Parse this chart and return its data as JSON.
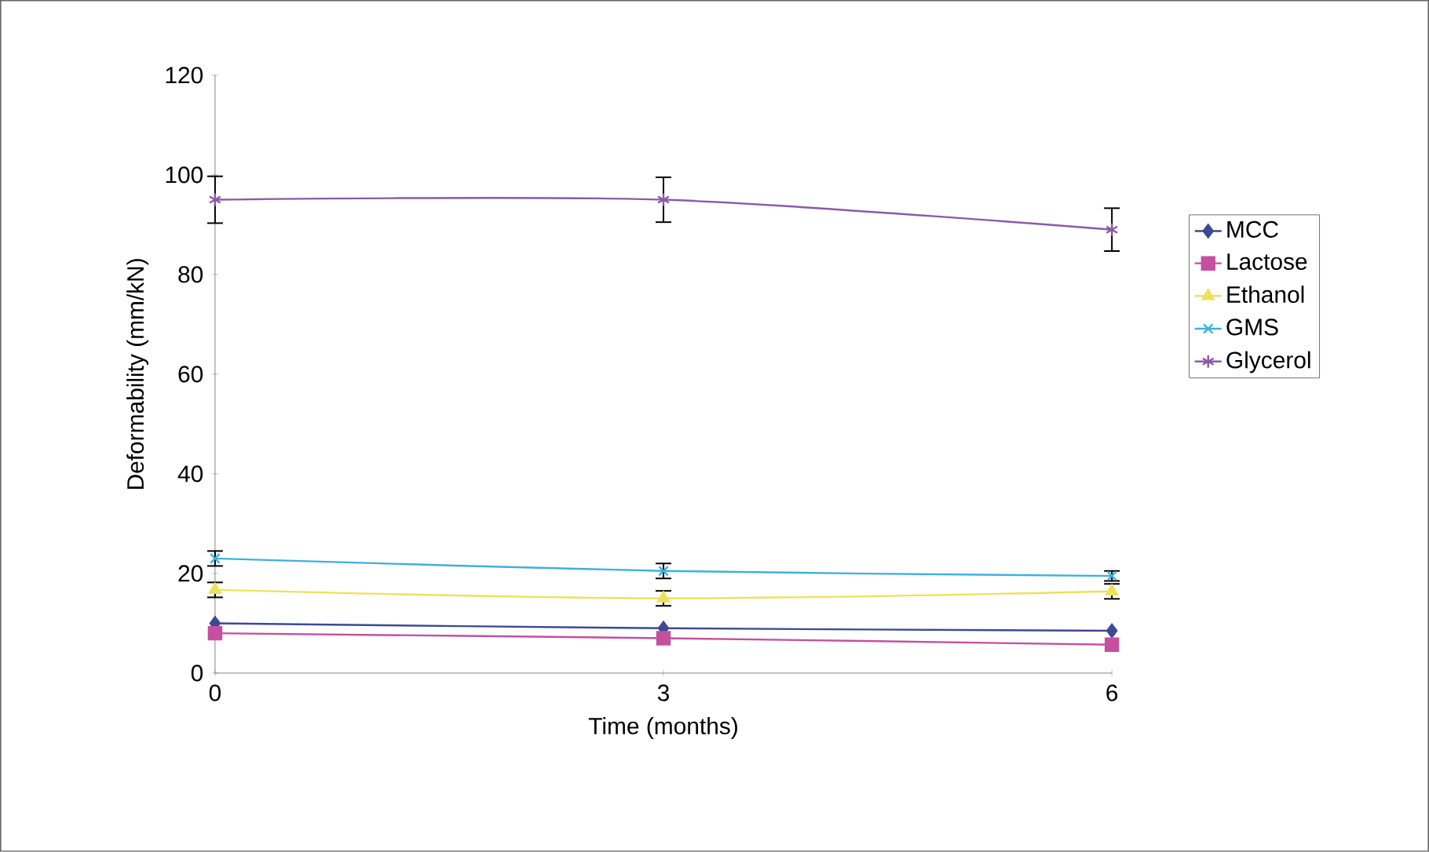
{
  "chart_data": {
    "type": "line",
    "xlabel": "Time (months)",
    "ylabel": "Deformability (mm/kN)",
    "x": [
      0,
      3,
      6
    ],
    "xlim": [
      0,
      6
    ],
    "xticks": [
      0,
      3,
      6
    ],
    "ylim": [
      0,
      120
    ],
    "yticks": [
      0,
      20,
      40,
      60,
      80,
      100,
      120
    ],
    "legend": "right",
    "line_style": "solid",
    "series": [
      {
        "name": "MCC",
        "color": "#3b4a94",
        "marker": "diamond",
        "values": [
          10,
          9,
          8.5
        ]
      },
      {
        "name": "Lactose",
        "color": "#c4509e",
        "marker": "square",
        "values": [
          8,
          7,
          5.7
        ]
      },
      {
        "name": "Ethanol",
        "color": "#ece25c",
        "marker": "triangle",
        "values": [
          16.7,
          15,
          16.4
        ],
        "errors": [
          1.5,
          1.5,
          1.5
        ]
      },
      {
        "name": "GMS",
        "color": "#3fb0dc",
        "marker": "cross",
        "values": [
          23,
          20.5,
          19.5
        ],
        "errors": [
          1.5,
          1.5,
          1
        ]
      },
      {
        "name": "Glycerol",
        "color": "#8a5aa6",
        "marker": "cross",
        "values": [
          95,
          95,
          89
        ],
        "errors": [
          4.7,
          4.5,
          4.3
        ]
      }
    ]
  }
}
